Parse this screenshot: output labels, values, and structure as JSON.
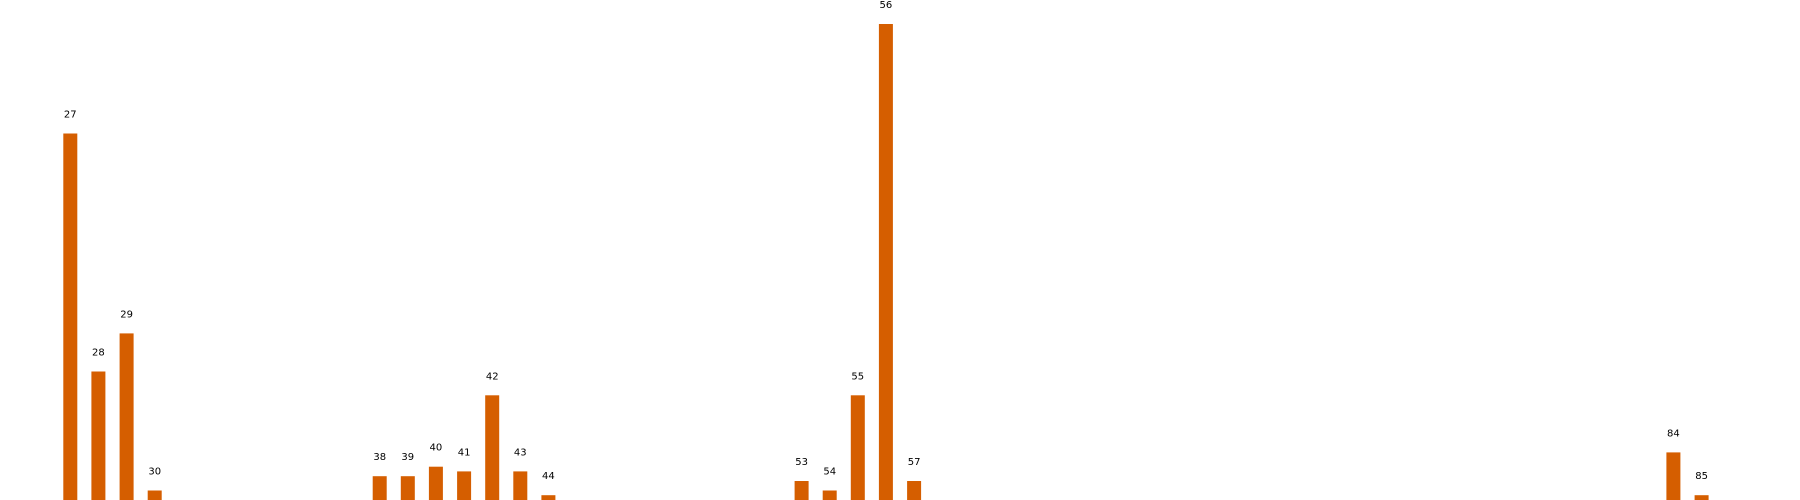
{
  "chart_data": {
    "type": "bar",
    "categories": [
      "27",
      "28",
      "29",
      "30",
      "38",
      "39",
      "40",
      "41",
      "42",
      "43",
      "44",
      "53",
      "54",
      "55",
      "56",
      "57",
      "84",
      "85"
    ],
    "x": [
      27,
      28,
      29,
      30,
      38,
      39,
      40,
      41,
      42,
      43,
      44,
      53,
      54,
      55,
      56,
      57,
      84,
      85
    ],
    "values": [
      77,
      27,
      35,
      2,
      5,
      5,
      7,
      6,
      22,
      6,
      1,
      4,
      2,
      22,
      100,
      4,
      10,
      1
    ],
    "data_labels": [
      "27",
      "28",
      "29",
      "30",
      "38",
      "39",
      "40",
      "41",
      "42",
      "43",
      "44",
      "53",
      "54",
      "55",
      "56",
      "57",
      "84",
      "85"
    ],
    "title": "",
    "xlabel": "",
    "ylabel": "",
    "xlim": [
      24.5,
      88.5
    ],
    "ylim": [
      0,
      100
    ],
    "grid": false,
    "legend": "none",
    "bar_color": "#d55e00",
    "label_color": "#000000"
  }
}
